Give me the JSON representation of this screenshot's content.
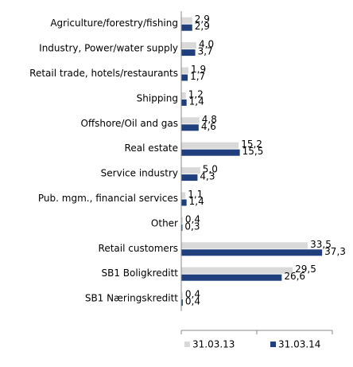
{
  "chart_data": {
    "type": "bar",
    "orientation": "horizontal",
    "categories": [
      "Agriculture/forestry/fishing",
      "Industry, Power/water supply",
      "Retail trade, hotels/restaurants",
      "Shipping",
      "Offshore/Oil and gas",
      "Real estate",
      "Service industry",
      "Pub. mgm., financial services",
      "Other",
      "Retail customers",
      "SB1 Boligkreditt",
      "SB1 Næringskreditt"
    ],
    "series": [
      {
        "name": "31.03.13",
        "color": "#d9d9d9",
        "values": [
          2.9,
          4.0,
          1.9,
          1.2,
          4.8,
          15.2,
          5.0,
          1.1,
          0.4,
          33.5,
          29.5,
          0.4
        ],
        "value_labels": [
          "2,9",
          "4,0",
          "1,9",
          "1,2",
          "4,8",
          "15,2",
          "5,0",
          "1,1",
          "0,4",
          "33,5",
          "29,5",
          "0,4"
        ]
      },
      {
        "name": "31.03.14",
        "color": "#203f7d",
        "values": [
          2.9,
          3.7,
          1.7,
          1.4,
          4.6,
          15.5,
          4.3,
          1.4,
          0.3,
          37.3,
          26.6,
          0.4
        ],
        "value_labels": [
          "2,9",
          "3,7",
          "1,7",
          "1,4",
          "4,6",
          "15,5",
          "4,3",
          "1,4",
          "0,3",
          "37,3",
          "26,6",
          "0,4"
        ]
      }
    ],
    "xlim": [
      0,
      40
    ],
    "xticks": [
      0,
      20,
      40
    ],
    "legend": "bottom"
  }
}
